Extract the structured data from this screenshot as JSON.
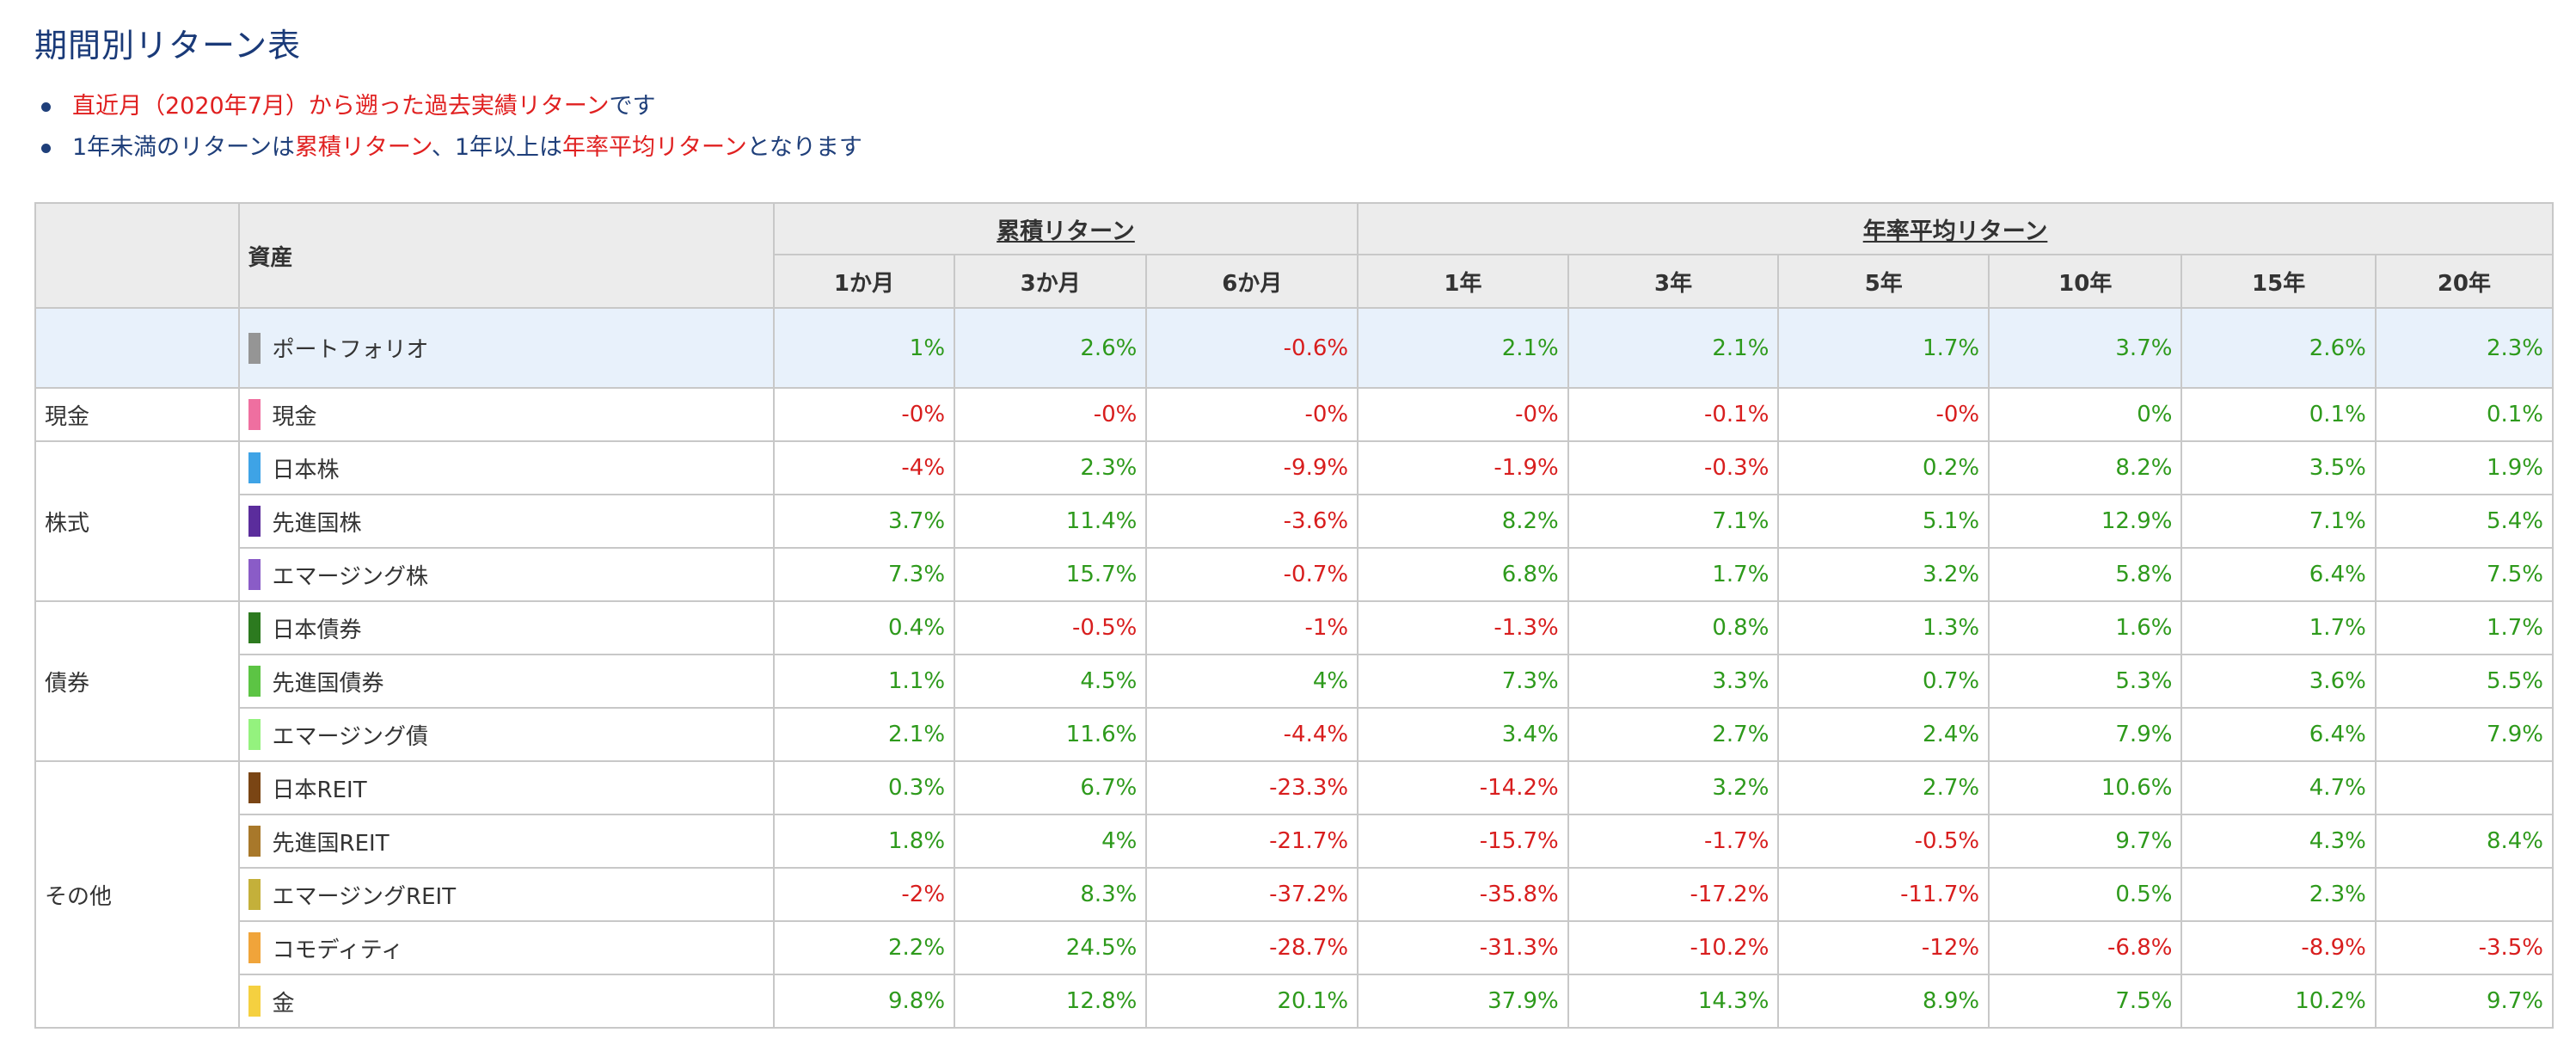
{
  "title": "期間別リターン表",
  "notes": {
    "n1_red": "直近月（2020年7月）から遡った過去実績リターン",
    "n1_tail": "です",
    "n2_a": "1年未満のリターンは",
    "n2_b": "累積リターン",
    "n2_c": "、1年以上は",
    "n2_d": "年率平均リターン",
    "n2_e": "となります"
  },
  "table": {
    "asset_header": "資産",
    "group_cumulative": "累積リターン",
    "group_annual": "年率平均リターン",
    "periods": [
      "1か月",
      "3か月",
      "6か月",
      "1年",
      "3年",
      "5年",
      "10年",
      "15年",
      "20年"
    ],
    "rows": [
      {
        "category": "",
        "asset": "ポートフォリオ",
        "color": "#959595",
        "values": [
          "1%",
          "2.6%",
          "-0.6%",
          "2.1%",
          "2.1%",
          "1.7%",
          "3.7%",
          "2.6%",
          "2.3%"
        ]
      },
      {
        "category": "現金",
        "asset": "現金",
        "color": "#ef6fa0",
        "values": [
          "-0%",
          "-0%",
          "-0%",
          "-0%",
          "-0.1%",
          "-0%",
          "0%",
          "0.1%",
          "0.1%"
        ]
      },
      {
        "category": "株式",
        "asset": "日本株",
        "color": "#3ea3e6",
        "values": [
          "-4%",
          "2.3%",
          "-9.9%",
          "-1.9%",
          "-0.3%",
          "0.2%",
          "8.2%",
          "3.5%",
          "1.9%"
        ]
      },
      {
        "category": "",
        "asset": "先進国株",
        "color": "#5b2d9c",
        "values": [
          "3.7%",
          "11.4%",
          "-3.6%",
          "8.2%",
          "7.1%",
          "5.1%",
          "12.9%",
          "7.1%",
          "5.4%"
        ]
      },
      {
        "category": "",
        "asset": "エマージング株",
        "color": "#8a5cc7",
        "values": [
          "7.3%",
          "15.7%",
          "-0.7%",
          "6.8%",
          "1.7%",
          "3.2%",
          "5.8%",
          "6.4%",
          "7.5%"
        ]
      },
      {
        "category": "債券",
        "asset": "日本債券",
        "color": "#2c7a1f",
        "values": [
          "0.4%",
          "-0.5%",
          "-1%",
          "-1.3%",
          "0.8%",
          "1.3%",
          "1.6%",
          "1.7%",
          "1.7%"
        ]
      },
      {
        "category": "",
        "asset": "先進国債券",
        "color": "#5cc444",
        "values": [
          "1.1%",
          "4.5%",
          "4%",
          "7.3%",
          "3.3%",
          "0.7%",
          "5.3%",
          "3.6%",
          "5.5%"
        ]
      },
      {
        "category": "",
        "asset": "エマージング債",
        "color": "#94f27e",
        "values": [
          "2.1%",
          "11.6%",
          "-4.4%",
          "3.4%",
          "2.7%",
          "2.4%",
          "7.9%",
          "6.4%",
          "7.9%"
        ]
      },
      {
        "category": "その他",
        "asset": "日本REIT",
        "color": "#7a4514",
        "values": [
          "0.3%",
          "6.7%",
          "-23.3%",
          "-14.2%",
          "3.2%",
          "2.7%",
          "10.6%",
          "4.7%",
          ""
        ]
      },
      {
        "category": "",
        "asset": "先進国REIT",
        "color": "#a8782a",
        "values": [
          "1.8%",
          "4%",
          "-21.7%",
          "-15.7%",
          "-1.7%",
          "-0.5%",
          "9.7%",
          "4.3%",
          "8.4%"
        ]
      },
      {
        "category": "",
        "asset": "エマージングREIT",
        "color": "#c4b03a",
        "values": [
          "-2%",
          "8.3%",
          "-37.2%",
          "-35.8%",
          "-17.2%",
          "-11.7%",
          "0.5%",
          "2.3%",
          ""
        ]
      },
      {
        "category": "",
        "asset": "コモディティ",
        "color": "#f0a43a",
        "values": [
          "2.2%",
          "24.5%",
          "-28.7%",
          "-31.3%",
          "-10.2%",
          "-12%",
          "-6.8%",
          "-8.9%",
          "-3.5%"
        ]
      },
      {
        "category": "",
        "asset": "金",
        "color": "#f5d040",
        "values": [
          "9.8%",
          "12.8%",
          "20.1%",
          "37.9%",
          "14.3%",
          "8.9%",
          "7.5%",
          "10.2%",
          "9.7%"
        ]
      }
    ]
  }
}
